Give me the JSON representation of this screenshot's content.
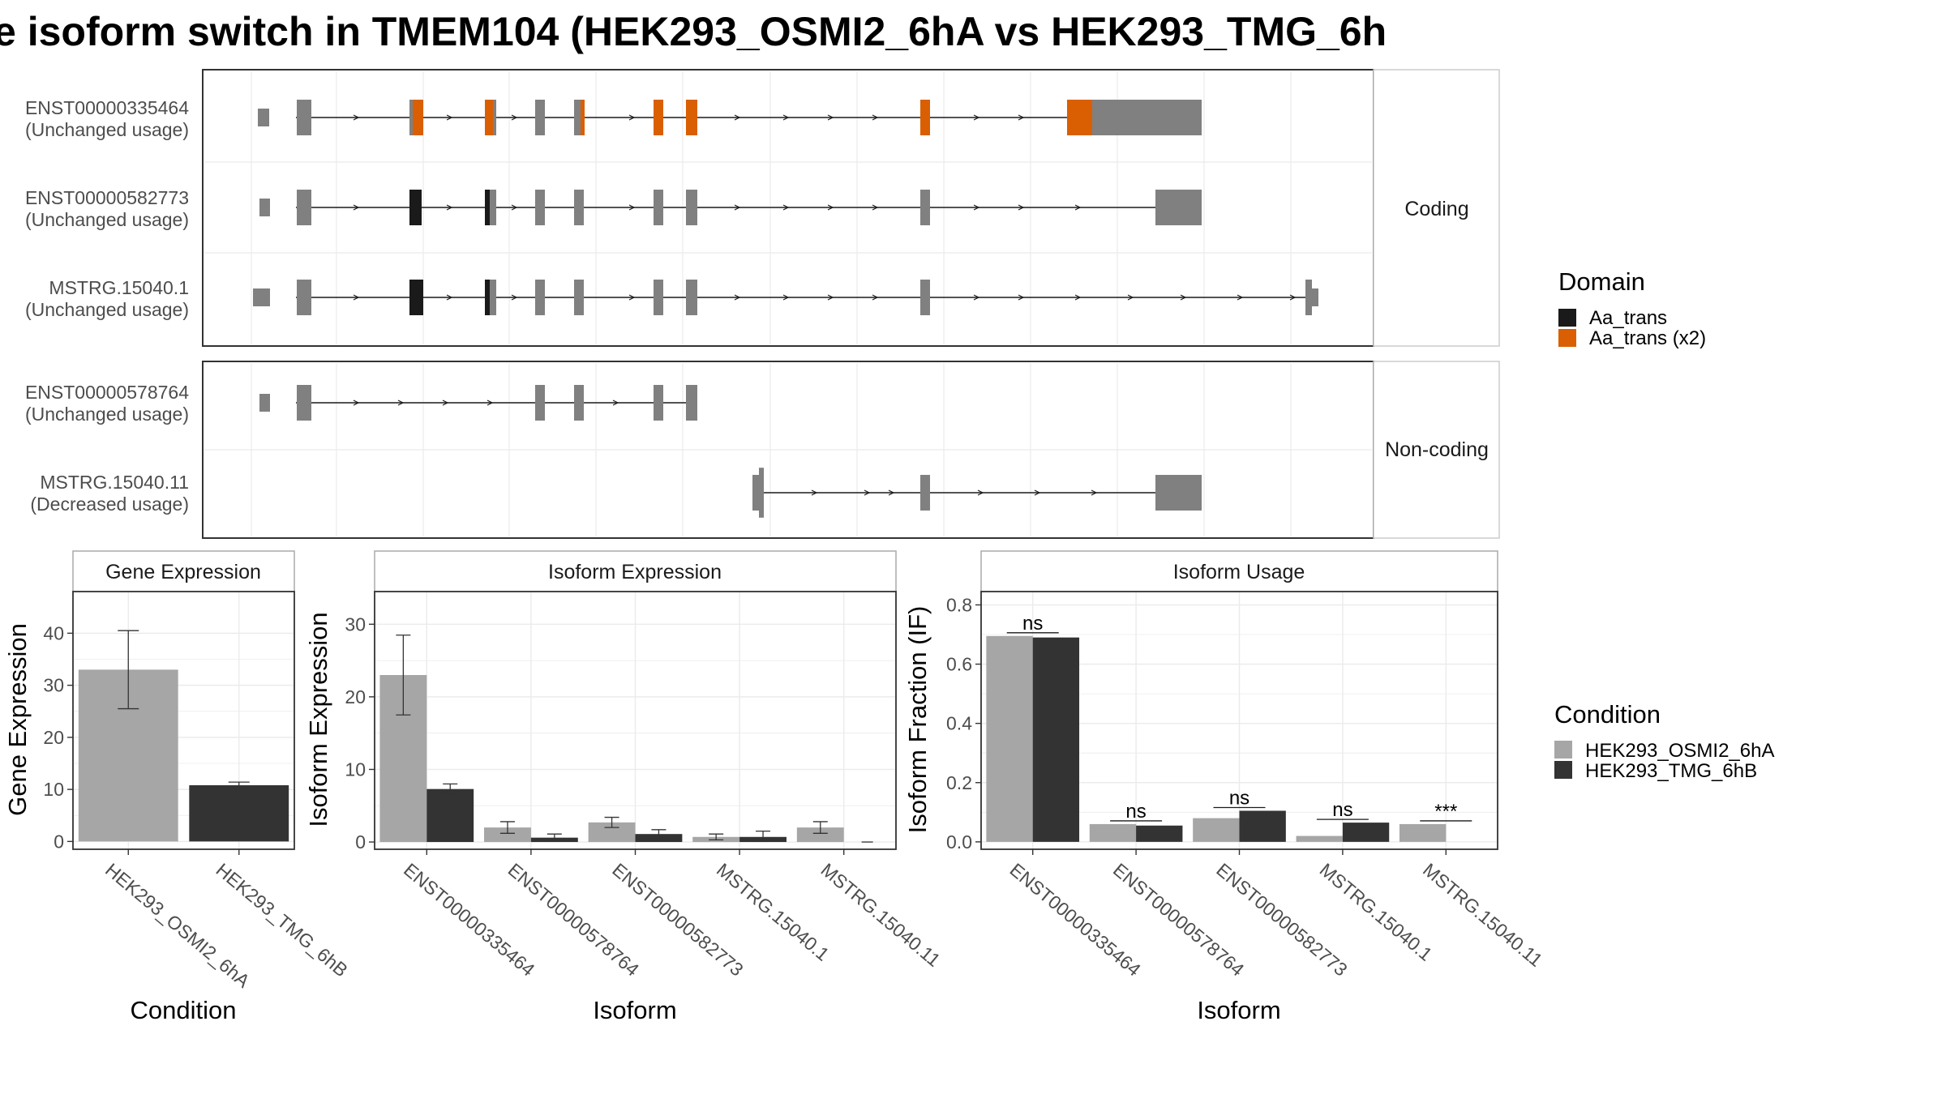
{
  "title": "e isoform switch in TMEM104 (HEK293_OSMI2_6hA vs HEK293_TMG_6h",
  "colors": {
    "exon": "#808080",
    "domain_single": "#1a1a1a",
    "domain_double": "#d95f02",
    "cond1": "#a6a6a6",
    "cond2": "#333333",
    "grid": "#ebebeb",
    "strip": "#ffffff",
    "panel_border": "#333333",
    "text": "#4d4d4d"
  },
  "structure": {
    "transcripts": [
      {
        "id": "ENST00000335464",
        "usage": "(Unchanged usage)",
        "group": "Coding"
      },
      {
        "id": "ENST00000582773",
        "usage": "(Unchanged usage)",
        "group": "Coding"
      },
      {
        "id": "MSTRG.15040.1",
        "usage": "(Unchanged usage)",
        "group": "Coding"
      },
      {
        "id": "ENST00000578764",
        "usage": "(Unchanged usage)",
        "group": "Non-coding"
      },
      {
        "id": "MSTRG.15040.11",
        "usage": "(Decreased usage)",
        "group": "Non-coding"
      }
    ],
    "groups": [
      "Coding",
      "Non-coding"
    ],
    "legend_title": "Domain",
    "legend_items": [
      "Aa_trans",
      "Aa_trans (x2)"
    ]
  },
  "chart_data": [
    {
      "type": "bar",
      "strip_title": "Gene Expression",
      "xlabel": "Condition",
      "ylabel": "Gene Expression",
      "categories": [
        "HEK293_OSMI2_6hA",
        "HEK293_TMG_6hB"
      ],
      "values": [
        33,
        10.8
      ],
      "errors": [
        [
          25.5,
          40.5
        ],
        [
          10.2,
          11.4
        ]
      ],
      "ylim": [
        -1.5,
        48
      ],
      "yticks": [
        0,
        10,
        20,
        30,
        40
      ],
      "ytick_labels": [
        "0",
        "10",
        "20",
        "30",
        "40"
      ]
    },
    {
      "type": "bar",
      "strip_title": "Isoform Expression",
      "xlabel": "Isoform",
      "ylabel": "Isoform Expression",
      "categories": [
        "ENST00000335464",
        "ENST00000578764",
        "ENST00000582773",
        "MSTRG.15040.1",
        "MSTRG.15040.11"
      ],
      "series": [
        {
          "name": "HEK293_OSMI2_6hA",
          "values": [
            23,
            2.0,
            2.7,
            0.7,
            2.0
          ],
          "errors": [
            [
              17.5,
              28.5
            ],
            [
              1.2,
              2.8
            ],
            [
              2.0,
              3.4
            ],
            [
              0.3,
              1.1
            ],
            [
              1.2,
              2.8
            ]
          ]
        },
        {
          "name": "HEK293_TMG_6hB",
          "values": [
            7.3,
            0.6,
            1.1,
            0.7,
            0.0
          ],
          "errors": [
            [
              6.6,
              8.0
            ],
            [
              0.2,
              1.1
            ],
            [
              0.6,
              1.7
            ],
            [
              0.1,
              1.5
            ],
            [
              0.0,
              0.0
            ]
          ]
        }
      ],
      "ylim": [
        -1.0,
        34.5
      ],
      "yticks": [
        0,
        10,
        20,
        30
      ],
      "ytick_labels": [
        "0",
        "10",
        "20",
        "30"
      ]
    },
    {
      "type": "bar",
      "strip_title": "Isoform Usage",
      "xlabel": "Isoform",
      "ylabel": "Isoform Fraction (IF)",
      "categories": [
        "ENST00000335464",
        "ENST00000578764",
        "ENST00000582773",
        "MSTRG.15040.1",
        "MSTRG.15040.11"
      ],
      "series": [
        {
          "name": "HEK293_OSMI2_6hA",
          "values": [
            0.695,
            0.06,
            0.08,
            0.02,
            0.06
          ]
        },
        {
          "name": "HEK293_TMG_6hB",
          "values": [
            0.69,
            0.055,
            0.105,
            0.065,
            0.0
          ]
        }
      ],
      "significance": [
        "ns",
        "ns",
        "ns",
        "ns",
        "***"
      ],
      "ylim": [
        -0.025,
        0.845
      ],
      "yticks": [
        0,
        0.2,
        0.4,
        0.6,
        0.8
      ],
      "ytick_labels": [
        "0.0",
        "0.2",
        "0.4",
        "0.6",
        "0.8"
      ]
    }
  ],
  "condition_legend": {
    "title": "Condition",
    "items": [
      "HEK293_OSMI2_6hA",
      "HEK293_TMG_6hB"
    ]
  }
}
